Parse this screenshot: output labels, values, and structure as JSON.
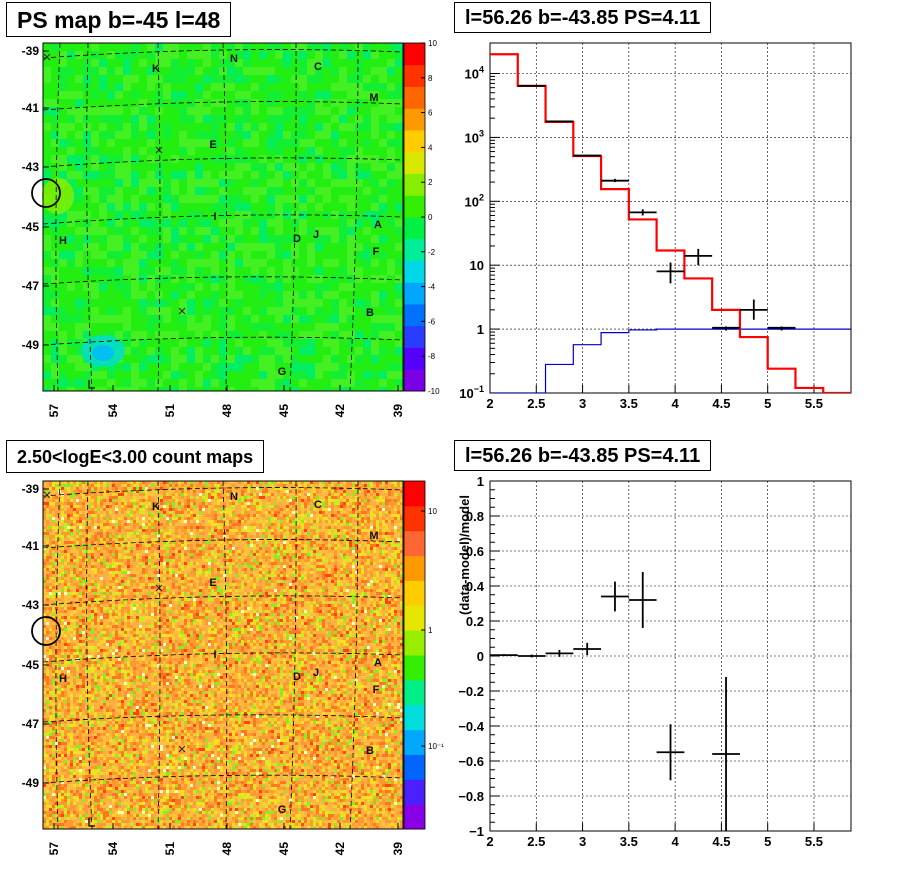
{
  "panels": {
    "ps_map": {
      "title": "PS map b=-45 l=48",
      "y_ticks": [
        "-39",
        "-41",
        "-43",
        "-45",
        "-47",
        "-49"
      ],
      "x_ticks": [
        "57",
        "54",
        "51",
        "48",
        "45",
        "42",
        "39"
      ],
      "colorbar_ticks": [
        "10",
        "8",
        "6",
        "4",
        "2",
        "0",
        "-2",
        "-4",
        "-6",
        "-8",
        "-10"
      ],
      "source_labels": [
        "N",
        "K",
        "C",
        "M",
        "E",
        "I",
        "A",
        "D",
        "J",
        "H",
        "F",
        "B",
        "G"
      ]
    },
    "count_map": {
      "title": "2.50<logE<3.00 count maps",
      "y_ticks": [
        "-39",
        "-41",
        "-43",
        "-45",
        "-47",
        "-49"
      ],
      "x_ticks": [
        "57",
        "54",
        "51",
        "48",
        "45",
        "42",
        "39"
      ],
      "colorbar_ticks": [
        "10",
        "1",
        "10⁻¹"
      ],
      "source_labels": [
        "N",
        "K",
        "C",
        "M",
        "E",
        "I",
        "A",
        "D",
        "J",
        "H",
        "F",
        "B",
        "G"
      ]
    },
    "spectrum": {
      "title": "l=56.26 b=-43.85 PS=4.11"
    },
    "residual": {
      "title": "l=56.26 b=-43.85 PS=4.11"
    }
  },
  "chart_data": [
    {
      "type": "heatmap",
      "title": "PS map b=-45 l=48",
      "xlabel": "",
      "ylabel": "",
      "x_ticks": [
        57,
        54,
        51,
        48,
        45,
        42,
        39
      ],
      "y_ticks": [
        -39,
        -41,
        -43,
        -45,
        -47,
        -49
      ],
      "colorbar_range": [
        -10,
        10
      ],
      "colorbar_ticks": [
        10,
        8,
        6,
        4,
        2,
        0,
        -2,
        -4,
        -6,
        -8,
        -10
      ],
      "dominant_value_approx": 0
    },
    {
      "type": "heatmap",
      "title": "2.50<logE<3.00 count maps",
      "xlabel": "",
      "ylabel": "",
      "x_ticks": [
        57,
        54,
        51,
        48,
        45,
        42,
        39
      ],
      "y_ticks": [
        -39,
        -41,
        -43,
        -45,
        -47,
        -49
      ],
      "colorbar_scale": "log",
      "colorbar_ticks": [
        "10",
        "1",
        "10^-1"
      ]
    },
    {
      "type": "line",
      "title": "l=56.26 b=-43.85 PS=4.11",
      "xlabel": "",
      "ylabel": "",
      "xlim": [
        2,
        5.9
      ],
      "ylim": [
        0.1,
        30000
      ],
      "y_scale": "log",
      "grid": true,
      "x_ticks": [
        2,
        2.5,
        3,
        3.5,
        4,
        4.5,
        5,
        5.5
      ],
      "y_tick_labels": [
        "10^-1",
        "1",
        "10",
        "10^2",
        "10^3",
        "10^4"
      ],
      "series": [
        {
          "style": "step",
          "color": "#ff0000",
          "edges": [
            2.0,
            2.3,
            2.6,
            2.9,
            3.2,
            3.5,
            3.8,
            4.1,
            4.4,
            4.7,
            5.0,
            5.3,
            5.6,
            5.9
          ],
          "values": [
            20000,
            6400,
            1750,
            510,
            155,
            52,
            17,
            6.2,
            2.0,
            0.75,
            0.24,
            0.12,
            0.1
          ]
        },
        {
          "style": "step",
          "color": "#0000cc",
          "edges": [
            2.0,
            2.3,
            2.6,
            2.9,
            3.2,
            3.5,
            3.8,
            4.1,
            4.4,
            4.7,
            5.0,
            5.3,
            5.6,
            5.9
          ],
          "values": [
            0.1,
            0.1,
            0.28,
            0.57,
            0.88,
            0.97,
            1.0,
            1.0,
            1.0,
            1.0,
            1.0,
            1.0,
            1.0
          ]
        },
        {
          "style": "errorbar",
          "color": "#000000",
          "x": [
            2.45,
            2.75,
            3.05,
            3.35,
            3.65,
            3.95,
            4.25,
            4.55,
            4.85,
            5.15
          ],
          "y": [
            6400,
            1780,
            520,
            210,
            67,
            8,
            14,
            1.05,
            2.0,
            1.05
          ],
          "xerr": [
            0.15,
            0.15,
            0.15,
            0.15,
            0.15,
            0.15,
            0.15,
            0.15,
            0.15,
            0.15
          ],
          "yerr_low": [
            6330,
            1740,
            500,
            200,
            60,
            5.2,
            10,
            0.95,
            1.4,
            0.95
          ],
          "yerr_high": [
            6500,
            1810,
            540,
            225,
            75,
            11,
            18,
            1.1,
            2.9,
            1.1
          ]
        }
      ]
    },
    {
      "type": "scatter",
      "title": "l=56.26 b=-43.85 PS=4.11",
      "xlabel": "",
      "ylabel": "(data-model)/model",
      "xlim": [
        2,
        5.9
      ],
      "ylim": [
        -1,
        1
      ],
      "grid": true,
      "x_ticks": [
        2,
        2.5,
        3,
        3.5,
        4,
        4.5,
        5,
        5.5
      ],
      "y_ticks": [
        -1,
        -0.8,
        -0.6,
        -0.4,
        -0.2,
        0,
        0.2,
        0.4,
        0.6,
        0.8,
        1
      ],
      "series": [
        {
          "style": "errorbar",
          "color": "#000000",
          "x": [
            2.15,
            2.45,
            2.75,
            3.05,
            3.35,
            3.65,
            3.95,
            4.55
          ],
          "y": [
            0.005,
            0.0,
            0.015,
            0.04,
            0.34,
            0.32,
            -0.55,
            -0.56
          ],
          "xerr": [
            0.15,
            0.15,
            0.15,
            0.15,
            0.15,
            0.15,
            0.15,
            0.15
          ],
          "yerr": [
            0.006,
            0.008,
            0.02,
            0.035,
            0.085,
            0.16,
            0.16,
            0.44
          ]
        }
      ]
    }
  ]
}
